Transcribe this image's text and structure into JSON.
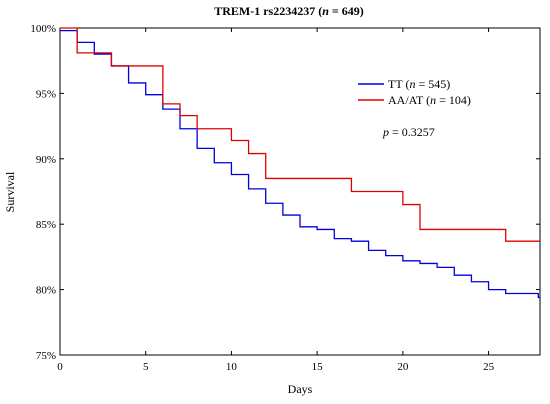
{
  "chart_data": {
    "type": "line",
    "title": {
      "prefix": "TREM-1 rs2234237 (",
      "n_symbol": "n",
      "suffix": " = 649)"
    },
    "xlabel": "Days",
    "ylabel": "Survival",
    "xlim": [
      0,
      28
    ],
    "ylim": [
      75,
      100
    ],
    "x_ticks": [
      0,
      5,
      10,
      15,
      20,
      25
    ],
    "x_tick_labels": [
      "0",
      "5",
      "10",
      "15",
      "20",
      "25"
    ],
    "y_ticks": [
      75,
      80,
      85,
      90,
      95,
      100
    ],
    "y_tick_labels": [
      "75%",
      "80%",
      "85%",
      "90%",
      "95%",
      "100%"
    ],
    "step": true,
    "series": [
      {
        "name": "TT",
        "legend": {
          "pre": "TT (",
          "n": "n",
          "post": " = 545)"
        },
        "color": "#0000e0",
        "points": [
          [
            0,
            99.8
          ],
          [
            1,
            98.9
          ],
          [
            2,
            98.0
          ],
          [
            3,
            97.1
          ],
          [
            4,
            95.8
          ],
          [
            5,
            94.9
          ],
          [
            6,
            93.8
          ],
          [
            7,
            92.3
          ],
          [
            8,
            90.8
          ],
          [
            9,
            89.7
          ],
          [
            10,
            88.8
          ],
          [
            11,
            87.7
          ],
          [
            12,
            86.6
          ],
          [
            13,
            85.7
          ],
          [
            14,
            84.8
          ],
          [
            15,
            84.6
          ],
          [
            16,
            83.9
          ],
          [
            17,
            83.7
          ],
          [
            18,
            83.0
          ],
          [
            19,
            82.6
          ],
          [
            20,
            82.2
          ],
          [
            21,
            82.0
          ],
          [
            22,
            81.7
          ],
          [
            23,
            81.1
          ],
          [
            24,
            80.6
          ],
          [
            25,
            80.0
          ],
          [
            26,
            79.7
          ],
          [
            27.9,
            79.4
          ],
          [
            28,
            79.4
          ]
        ]
      },
      {
        "name": "AA/AT",
        "legend": {
          "pre": "AA/AT (",
          "n": "n",
          "post": " = 104)"
        },
        "color": "#e00000",
        "points": [
          [
            0,
            100.0
          ],
          [
            1,
            98.1
          ],
          [
            3,
            97.1
          ],
          [
            6,
            94.2
          ],
          [
            7,
            93.3
          ],
          [
            8,
            92.3
          ],
          [
            10,
            91.4
          ],
          [
            11,
            90.4
          ],
          [
            12,
            88.5
          ],
          [
            17,
            87.5
          ],
          [
            20,
            86.5
          ],
          [
            21,
            84.6
          ],
          [
            26,
            83.7
          ],
          [
            28,
            83.7
          ]
        ]
      }
    ],
    "legend_position": "top-right",
    "annotation": {
      "p_symbol": "p",
      "text": " = 0.3257"
    }
  }
}
